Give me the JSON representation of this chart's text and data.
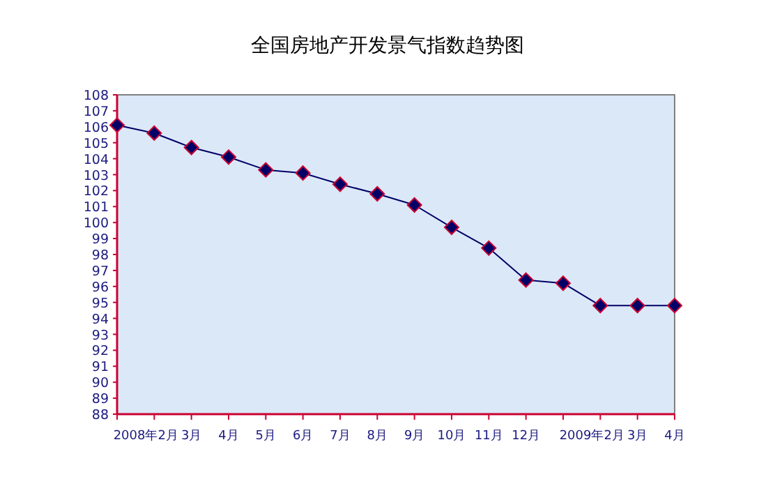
{
  "chart_data": {
    "type": "line",
    "title": "全国房地产开发景气指数趋势图",
    "categories": [
      null,
      "2008年2月",
      "3月",
      "4月",
      "5月",
      "6月",
      "7月",
      "8月",
      "9月",
      "10月",
      "11月",
      "12月",
      null,
      "2009年2月",
      "3月",
      "4月"
    ],
    "series": [
      {
        "color": "#000066",
        "values": [
          106.1,
          105.6,
          104.7,
          104.1,
          103.3,
          103.1,
          102.4,
          101.8,
          101.1,
          99.7,
          98.4,
          96.4,
          96.2,
          94.8,
          94.8,
          94.8
        ]
      }
    ],
    "ylim": [
      88,
      108
    ],
    "yticks": [
      88,
      89,
      90,
      91,
      92,
      93,
      94,
      95,
      96,
      97,
      98,
      99,
      100,
      101,
      102,
      103,
      104,
      105,
      106,
      107,
      108
    ],
    "marker": "diamond",
    "grid": false
  }
}
